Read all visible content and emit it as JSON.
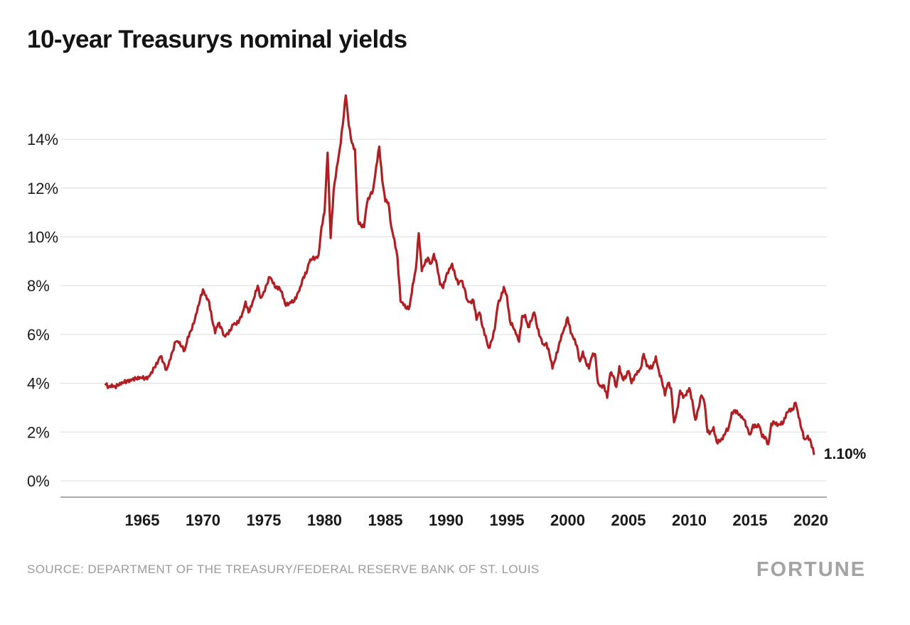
{
  "page": {
    "title": "10-year Treasurys nominal yields",
    "source": "SOURCE: DEPARTMENT OF THE TREASURY/FEDERAL RESERVE BANK OF ST. LOUIS",
    "brand": "FORTUNE"
  },
  "colors": {
    "line": "#b01f24",
    "grid": "#dcdcdc",
    "axis": "#8f8f8f",
    "y_label": "#1a1a1a",
    "x_label": "#1a1a1a"
  },
  "chart_data": {
    "type": "line",
    "title": "10-year Treasurys nominal yields",
    "series_name": "10-year Treasury nominal yield",
    "unit": "%",
    "end_label": "1.10%",
    "grid": true,
    "x_start": 1962,
    "x_step": 0.25,
    "x_ticks": [
      1965,
      1970,
      1975,
      1980,
      1985,
      1990,
      1995,
      2000,
      2005,
      2010,
      2015,
      2020
    ],
    "y_ticks": [
      0,
      2,
      4,
      6,
      8,
      10,
      12,
      14
    ],
    "y_tick_suffix": "%",
    "ylim": [
      0,
      16.2
    ],
    "values": [
      3.95,
      3.85,
      3.95,
      3.87,
      3.9,
      3.95,
      4.02,
      4.1,
      4.15,
      4.2,
      4.18,
      4.18,
      4.2,
      4.2,
      4.28,
      4.45,
      4.65,
      4.8,
      5.1,
      4.85,
      4.55,
      4.95,
      5.3,
      5.7,
      5.65,
      5.5,
      5.35,
      5.9,
      6.15,
      6.45,
      6.9,
      7.4,
      7.85,
      7.6,
      7.35,
      6.6,
      6.05,
      6.45,
      6.3,
      5.95,
      6.05,
      6.15,
      6.4,
      6.4,
      6.6,
      6.9,
      7.35,
      6.9,
      7.15,
      7.55,
      8.0,
      7.5,
      7.75,
      8.05,
      8.35,
      8.1,
      7.9,
      7.95,
      7.75,
      7.25,
      7.2,
      7.3,
      7.35,
      7.65,
      7.95,
      8.35,
      8.5,
      8.95,
      9.1,
      9.15,
      9.25,
      10.4,
      11.0,
      13.45,
      9.95,
      11.9,
      12.85,
      13.6,
      14.6,
      15.8,
      14.55,
      13.85,
      13.6,
      10.7,
      10.45,
      10.4,
      11.4,
      11.7,
      11.95,
      12.9,
      13.7,
      12.3,
      11.45,
      11.4,
      10.4,
      9.9,
      9.15,
      7.35,
      7.2,
      7.05,
      7.15,
      8.05,
      8.65,
      10.15,
      8.6,
      8.9,
      9.15,
      8.9,
      9.3,
      8.8,
      8.05,
      7.9,
      8.4,
      8.7,
      8.9,
      8.4,
      8.05,
      8.2,
      7.9,
      7.4,
      7.35,
      7.4,
      6.6,
      6.9,
      6.3,
      5.95,
      5.45,
      5.75,
      6.2,
      7.2,
      7.5,
      7.95,
      7.6,
      6.55,
      6.3,
      6.0,
      5.7,
      6.75,
      6.8,
      6.3,
      6.55,
      6.9,
      6.25,
      5.9,
      5.6,
      5.65,
      5.2,
      4.6,
      5.0,
      5.5,
      6.0,
      6.3,
      6.7,
      6.05,
      5.8,
      5.55,
      4.9,
      5.3,
      4.85,
      4.6,
      5.1,
      5.2,
      4.0,
      3.9,
      3.9,
      3.4,
      4.4,
      4.3,
      3.85,
      4.7,
      4.2,
      4.2,
      4.5,
      4.0,
      4.3,
      4.5,
      4.6,
      5.2,
      4.7,
      4.6,
      4.7,
      5.1,
      4.5,
      4.1,
      3.5,
      4.0,
      3.8,
      2.4,
      2.9,
      3.7,
      3.4,
      3.5,
      3.8,
      3.3,
      2.5,
      2.95,
      3.5,
      3.2,
      2.0,
      2.0,
      2.2,
      1.6,
      1.6,
      1.7,
      2.0,
      2.2,
      2.8,
      2.9,
      2.75,
      2.6,
      2.5,
      2.2,
      1.9,
      2.3,
      2.2,
      2.25,
      1.8,
      1.8,
      1.5,
      2.35,
      2.4,
      2.25,
      2.3,
      2.4,
      2.8,
      2.95,
      2.9,
      3.2,
      2.6,
      2.1,
      1.7,
      1.85,
      1.6,
      1.1
    ]
  }
}
